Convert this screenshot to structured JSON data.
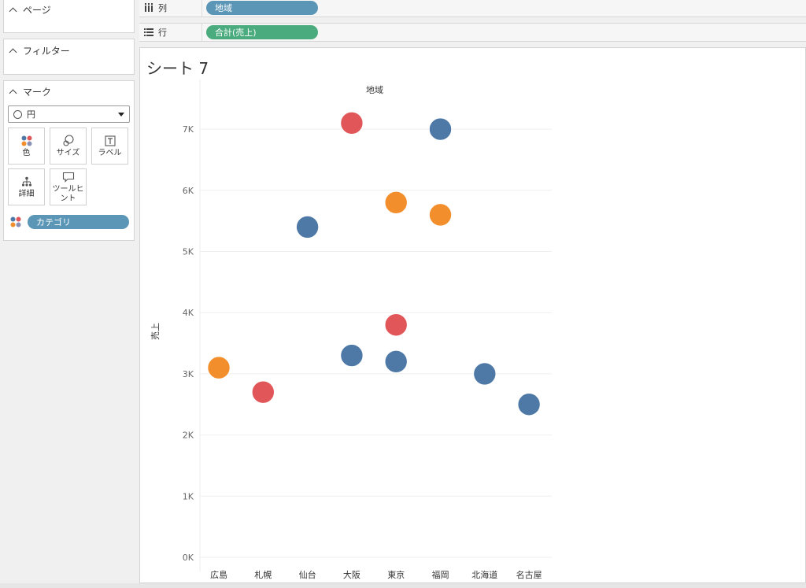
{
  "panels": {
    "pages": {
      "title": "ページ"
    },
    "filters": {
      "title": "フィルター"
    },
    "marks": {
      "title": "マーク",
      "mark_type": "円",
      "buttons": {
        "color": "色",
        "size": "サイズ",
        "label": "ラベル",
        "detail": "詳細",
        "tooltip_line1": "ツールヒ",
        "tooltip_line2": "ント"
      },
      "color_field": "カテゴリ"
    }
  },
  "shelves": {
    "columns": {
      "label": "列",
      "pill": "地域"
    },
    "rows": {
      "label": "行",
      "pill": "合計(売上)"
    }
  },
  "sheet": {
    "title": "シート 7"
  },
  "colors": {
    "blue": "#4e79a7",
    "orange": "#f28e2b",
    "red": "#e15759",
    "pill_blue": "#5b96b6",
    "pill_green": "#4aab7e"
  },
  "chart_data": {
    "type": "scatter",
    "title": "地域",
    "xlabel": "",
    "ylabel": "売上",
    "ylim": [
      0,
      7500
    ],
    "y_ticks": [
      0,
      1000,
      2000,
      3000,
      4000,
      5000,
      6000,
      7000
    ],
    "y_tick_labels": [
      "0K",
      "1K",
      "2K",
      "3K",
      "4K",
      "5K",
      "6K",
      "7K"
    ],
    "categories": [
      "広島",
      "札幌",
      "仙台",
      "大阪",
      "東京",
      "福岡",
      "北海道",
      "名古屋"
    ],
    "points": [
      {
        "x": "広島",
        "y": 3100,
        "color": "orange"
      },
      {
        "x": "札幌",
        "y": 2700,
        "color": "red"
      },
      {
        "x": "仙台",
        "y": 5400,
        "color": "blue"
      },
      {
        "x": "大阪",
        "y": 7100,
        "color": "red"
      },
      {
        "x": "大阪",
        "y": 3300,
        "color": "blue"
      },
      {
        "x": "東京",
        "y": 5800,
        "color": "orange"
      },
      {
        "x": "東京",
        "y": 3800,
        "color": "red"
      },
      {
        "x": "東京",
        "y": 3200,
        "color": "blue"
      },
      {
        "x": "福岡",
        "y": 7000,
        "color": "blue"
      },
      {
        "x": "福岡",
        "y": 5600,
        "color": "orange"
      },
      {
        "x": "北海道",
        "y": 3000,
        "color": "blue"
      },
      {
        "x": "名古屋",
        "y": 2500,
        "color": "blue"
      }
    ]
  }
}
